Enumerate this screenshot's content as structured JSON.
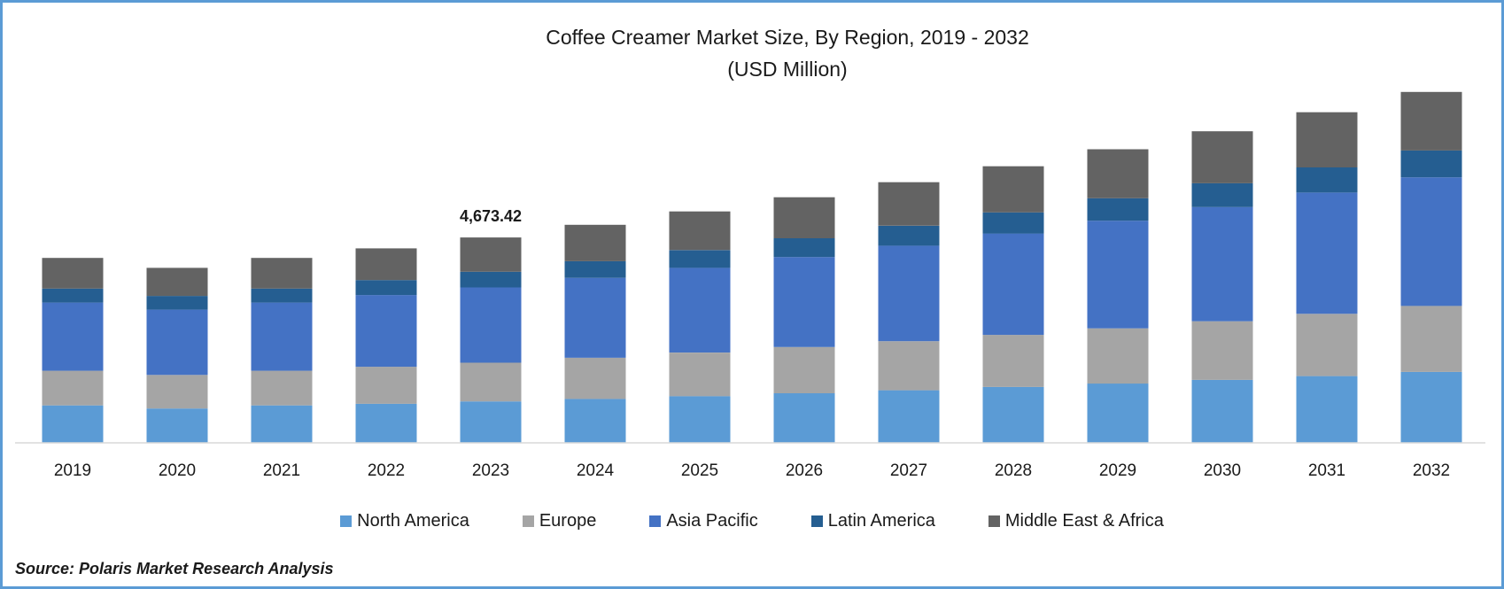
{
  "chart_data": {
    "type": "bar",
    "stacked": true,
    "title": "Coffee Creamer Market Size, By Region, 2019 - 2032",
    "subtitle": "(USD Million)",
    "categories": [
      "2019",
      "2020",
      "2021",
      "2022",
      "2023",
      "2024",
      "2025",
      "2026",
      "2027",
      "2028",
      "2029",
      "2030",
      "2031",
      "2032"
    ],
    "series": [
      {
        "name": "North America",
        "color": "#5b9bd5",
        "values": [
          853,
          782,
          853,
          888,
          943,
          1001,
          1063,
          1128,
          1197,
          1271,
          1349,
          1432,
          1520,
          1613
        ]
      },
      {
        "name": "Europe",
        "color": "#a5a5a5",
        "values": [
          787,
          764,
          787,
          842,
          880,
          934,
          991,
          1052,
          1116,
          1185,
          1257,
          1334,
          1416,
          1503
        ]
      },
      {
        "name": "Asia Pacific",
        "color": "#4472c4",
        "values": [
          1551,
          1484,
          1551,
          1632,
          1713,
          1818,
          1929,
          2047,
          2173,
          2306,
          2447,
          2597,
          2756,
          2925
        ]
      },
      {
        "name": "Latin America",
        "color": "#255e91",
        "values": [
          319,
          313,
          319,
          341,
          357,
          379,
          402,
          427,
          453,
          481,
          511,
          542,
          575,
          610
        ]
      },
      {
        "name": "Middle East & Africa",
        "color": "#636363",
        "values": [
          697,
          638,
          697,
          722,
          780,
          828,
          879,
          933,
          990,
          1050,
          1115,
          1183,
          1255,
          1332
        ]
      }
    ],
    "data_labels": [
      {
        "category": "2023",
        "text": "4,673.42"
      }
    ],
    "legend_position": "bottom",
    "grid": false,
    "ylim": [
      0,
      8200
    ]
  },
  "source": "Source: Polaris Market Research Analysis"
}
